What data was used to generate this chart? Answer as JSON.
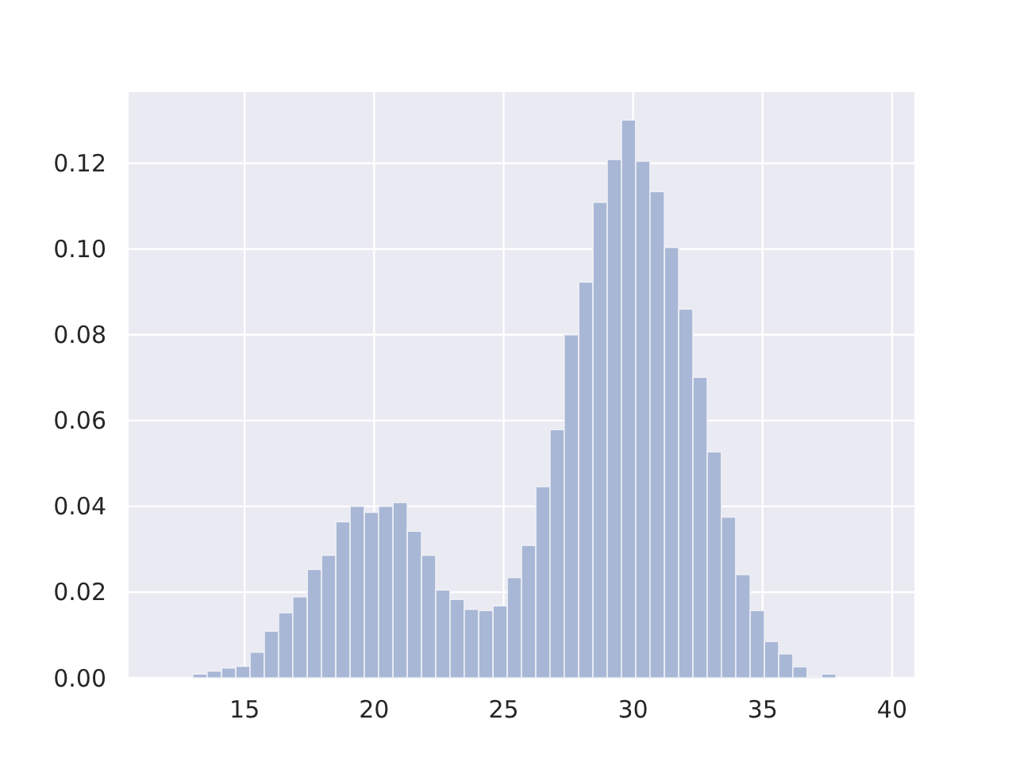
{
  "chart_data": {
    "type": "histogram",
    "bins": [
      11.9,
      12.45,
      13.0,
      13.55,
      14.11,
      14.66,
      15.21,
      15.76,
      16.31,
      16.86,
      17.42,
      17.97,
      18.52,
      19.07,
      19.62,
      20.17,
      20.73,
      21.28,
      21.83,
      22.38,
      22.93,
      23.48,
      24.04,
      24.59,
      25.14,
      25.69,
      26.24,
      26.79,
      27.34,
      27.9,
      28.45,
      29.0,
      29.55,
      30.1,
      30.65,
      31.21,
      31.76,
      32.31,
      32.86,
      33.41,
      33.96,
      34.52,
      35.07,
      35.62,
      36.17,
      36.72,
      37.28,
      37.83,
      38.38,
      38.93,
      39.48
    ],
    "values": [
      0,
      0,
      0.0009,
      0.0016,
      0.0023,
      0.0027,
      0.006,
      0.0109,
      0.0152,
      0.0189,
      0.0253,
      0.0286,
      0.0364,
      0.04,
      0.0386,
      0.04,
      0.0409,
      0.0342,
      0.0286,
      0.0205,
      0.0183,
      0.016,
      0.0157,
      0.0168,
      0.0234,
      0.0309,
      0.0446,
      0.0579,
      0.08,
      0.0923,
      0.1109,
      0.1209,
      0.1301,
      0.1205,
      0.1134,
      0.1004,
      0.086,
      0.0701,
      0.0527,
      0.0375,
      0.0241,
      0.0157,
      0.0085,
      0.0056,
      0.0026,
      0.0003,
      0.0009,
      0,
      0,
      0
    ],
    "color": "#a9b7d6",
    "xlim": [
      10.52,
      40.86
    ],
    "ylim": [
      0,
      0.1366
    ],
    "xticks": [
      15,
      20,
      25,
      30,
      35,
      40
    ],
    "yticks": [
      {
        "value": 0,
        "label": "0.00"
      },
      {
        "value": 0.02,
        "label": "0.02"
      },
      {
        "value": 0.04,
        "label": "0.04"
      },
      {
        "value": 0.06,
        "label": "0.06"
      },
      {
        "value": 0.08,
        "label": "0.08"
      },
      {
        "value": 0.1,
        "label": "0.10"
      },
      {
        "value": 0.12,
        "label": "0.12"
      }
    ],
    "grid": true
  }
}
